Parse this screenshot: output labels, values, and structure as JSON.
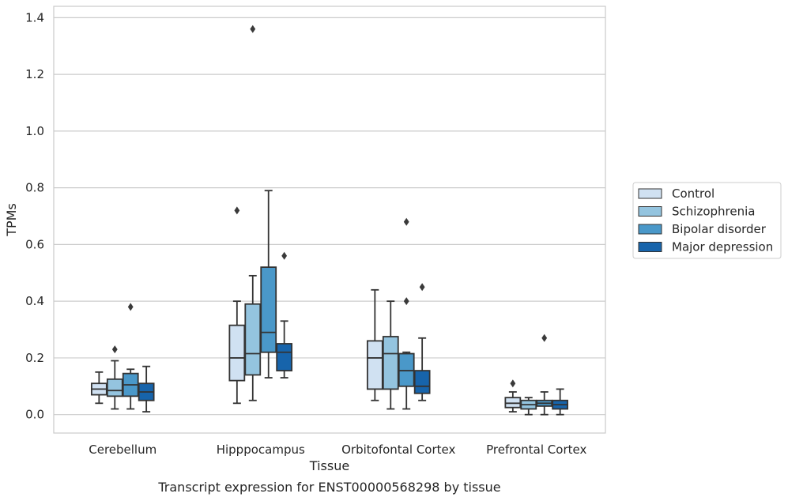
{
  "chart_data": {
    "type": "box",
    "xlabel": "Tissue",
    "ylabel": "TPMs",
    "caption": "Transcript expression for ENST00000568298 by tissue",
    "categories": [
      "Cerebellum",
      "Hipppocampus",
      "Orbitofontal Cortex",
      "Prefrontal Cortex"
    ],
    "ylim": [
      -0.065,
      1.44
    ],
    "yticks": [
      0.0,
      0.2,
      0.4,
      0.6,
      0.8,
      1.0,
      1.2,
      1.4
    ],
    "ytick_labels": [
      "0.0",
      "0.2",
      "0.4",
      "0.6",
      "0.8",
      "1.0",
      "1.2",
      "1.4"
    ],
    "grid": "horizontal",
    "legend_position": "right",
    "series": [
      {
        "name": "Control",
        "color": "#d0e1f2",
        "boxes": [
          {
            "whislo": 0.04,
            "q1": 0.07,
            "med": 0.09,
            "q3": 0.11,
            "whishi": 0.15,
            "fliers": []
          },
          {
            "whislo": 0.04,
            "q1": 0.12,
            "med": 0.2,
            "q3": 0.315,
            "whishi": 0.4,
            "fliers": [
              0.72
            ]
          },
          {
            "whislo": 0.05,
            "q1": 0.09,
            "med": 0.2,
            "q3": 0.26,
            "whishi": 0.44,
            "fliers": []
          },
          {
            "whislo": 0.01,
            "q1": 0.025,
            "med": 0.04,
            "q3": 0.06,
            "whishi": 0.08,
            "fliers": [
              0.11
            ]
          }
        ]
      },
      {
        "name": "Schizophrenia",
        "color": "#94c4df",
        "boxes": [
          {
            "whislo": 0.02,
            "q1": 0.065,
            "med": 0.085,
            "q3": 0.125,
            "whishi": 0.19,
            "fliers": [
              0.23
            ]
          },
          {
            "whislo": 0.05,
            "q1": 0.14,
            "med": 0.215,
            "q3": 0.39,
            "whishi": 0.49,
            "fliers": [
              1.36
            ]
          },
          {
            "whislo": 0.02,
            "q1": 0.09,
            "med": 0.215,
            "q3": 0.275,
            "whishi": 0.4,
            "fliers": []
          },
          {
            "whislo": 0.0,
            "q1": 0.02,
            "med": 0.035,
            "q3": 0.05,
            "whishi": 0.06,
            "fliers": []
          }
        ]
      },
      {
        "name": "Bipolar disorder",
        "color": "#4a98c9",
        "boxes": [
          {
            "whislo": 0.02,
            "q1": 0.065,
            "med": 0.105,
            "q3": 0.145,
            "whishi": 0.16,
            "fliers": [
              0.38
            ]
          },
          {
            "whislo": 0.13,
            "q1": 0.22,
            "med": 0.29,
            "q3": 0.52,
            "whishi": 0.79,
            "fliers": []
          },
          {
            "whislo": 0.02,
            "q1": 0.1,
            "med": 0.155,
            "q3": 0.215,
            "whishi": 0.22,
            "fliers": [
              0.4,
              0.68
            ]
          },
          {
            "whislo": 0.0,
            "q1": 0.03,
            "med": 0.04,
            "q3": 0.05,
            "whishi": 0.08,
            "fliers": [
              0.27
            ]
          }
        ]
      },
      {
        "name": "Major depression",
        "color": "#1764ab",
        "boxes": [
          {
            "whislo": 0.01,
            "q1": 0.05,
            "med": 0.08,
            "q3": 0.11,
            "whishi": 0.17,
            "fliers": []
          },
          {
            "whislo": 0.13,
            "q1": 0.155,
            "med": 0.22,
            "q3": 0.25,
            "whishi": 0.33,
            "fliers": [
              0.56
            ]
          },
          {
            "whislo": 0.05,
            "q1": 0.075,
            "med": 0.1,
            "q3": 0.155,
            "whishi": 0.27,
            "fliers": [
              0.45
            ]
          },
          {
            "whislo": 0.0,
            "q1": 0.02,
            "med": 0.035,
            "q3": 0.05,
            "whishi": 0.09,
            "fliers": []
          }
        ]
      }
    ]
  }
}
